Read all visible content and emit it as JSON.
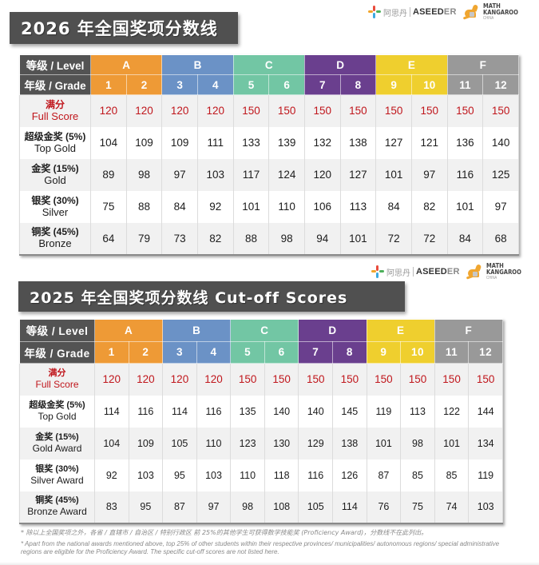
{
  "logos": {
    "aseeder_cn": "阿思丹",
    "aseeder_en_bold": "ASEED",
    "aseeder_en_light": "ER",
    "mk_line1": "MATH",
    "mk_line2": "KANGAROO",
    "mk_line3": "CHINA"
  },
  "section_2026": {
    "title": "2026 年全国奖项分数线",
    "level_header": "等级 / Level",
    "grade_header": "年级 / Grade",
    "levels": [
      {
        "name": "A",
        "color": "#ee9a36"
      },
      {
        "name": "B",
        "color": "#6b92c6"
      },
      {
        "name": "C",
        "color": "#72c6a4"
      },
      {
        "name": "D",
        "color": "#6a3f8e"
      },
      {
        "name": "E",
        "color": "#efcf2e"
      },
      {
        "name": "F",
        "color": "#999999"
      }
    ],
    "grades": [
      "1",
      "2",
      "3",
      "4",
      "5",
      "6",
      "7",
      "8",
      "9",
      "10",
      "11",
      "12"
    ],
    "rows": [
      {
        "cn": "满分",
        "en": "Full Score",
        "values": [
          "120",
          "120",
          "120",
          "120",
          "150",
          "150",
          "150",
          "150",
          "150",
          "150",
          "150",
          "150"
        ]
      },
      {
        "cn": "超级金奖 (5%)",
        "en": "Top Gold",
        "values": [
          "104",
          "109",
          "109",
          "111",
          "133",
          "139",
          "132",
          "138",
          "127",
          "121",
          "136",
          "140"
        ]
      },
      {
        "cn": "金奖 (15%)",
        "en": "Gold",
        "values": [
          "89",
          "98",
          "97",
          "103",
          "117",
          "124",
          "120",
          "127",
          "101",
          "97",
          "116",
          "125"
        ]
      },
      {
        "cn": "银奖 (30%)",
        "en": "Silver",
        "values": [
          "75",
          "88",
          "84",
          "92",
          "101",
          "110",
          "106",
          "113",
          "84",
          "82",
          "101",
          "97"
        ]
      },
      {
        "cn": "铜奖 (45%)",
        "en": "Bronze",
        "values": [
          "64",
          "79",
          "73",
          "82",
          "88",
          "98",
          "94",
          "101",
          "72",
          "72",
          "84",
          "68"
        ]
      }
    ]
  },
  "section_2025": {
    "title": "2025 年全国奖项分数线 Cut-off Scores",
    "level_header": "等级 / Level",
    "grade_header": "年级 / Grade",
    "levels": [
      {
        "name": "A",
        "color": "#ee9a36"
      },
      {
        "name": "B",
        "color": "#6b92c6"
      },
      {
        "name": "C",
        "color": "#72c6a4"
      },
      {
        "name": "D",
        "color": "#6a3f8e"
      },
      {
        "name": "E",
        "color": "#efcf2e"
      },
      {
        "name": "F",
        "color": "#999999"
      }
    ],
    "grades": [
      "1",
      "2",
      "3",
      "4",
      "5",
      "6",
      "7",
      "8",
      "9",
      "10",
      "11",
      "12"
    ],
    "rows": [
      {
        "cn": "满分",
        "en": "Full Score",
        "values": [
          "120",
          "120",
          "120",
          "120",
          "150",
          "150",
          "150",
          "150",
          "150",
          "150",
          "150",
          "150"
        ]
      },
      {
        "cn": "超级金奖 (5%)",
        "en": "Top Gold",
        "values": [
          "114",
          "116",
          "114",
          "116",
          "135",
          "140",
          "140",
          "145",
          "119",
          "113",
          "122",
          "144"
        ]
      },
      {
        "cn": "金奖 (15%)",
        "en": "Gold Award",
        "values": [
          "104",
          "109",
          "105",
          "110",
          "123",
          "130",
          "129",
          "138",
          "101",
          "98",
          "101",
          "134"
        ]
      },
      {
        "cn": "银奖 (30%)",
        "en": "Silver Award",
        "values": [
          "92",
          "103",
          "95",
          "103",
          "110",
          "118",
          "116",
          "126",
          "87",
          "85",
          "85",
          "119"
        ]
      },
      {
        "cn": "铜奖 (45%)",
        "en": "Bronze Award",
        "values": [
          "83",
          "95",
          "87",
          "97",
          "98",
          "108",
          "105",
          "114",
          "76",
          "75",
          "74",
          "103"
        ]
      }
    ]
  },
  "footnotes": {
    "cn": "* 除以上全国奖项之外，各省 / 直辖市 / 自治区 / 特别行政区 前 25%的其他学生可获得数学技能奖 (Proficiency Award)，分数线不在此列出。",
    "en": "* Apart from the national awards mentioned above, top 25% of other students within their respective provinces/ municipalities/ autonomous regions/ special administrative regions are eligible for the Proficiency Award. The specific cut-off scores are not listed here."
  }
}
